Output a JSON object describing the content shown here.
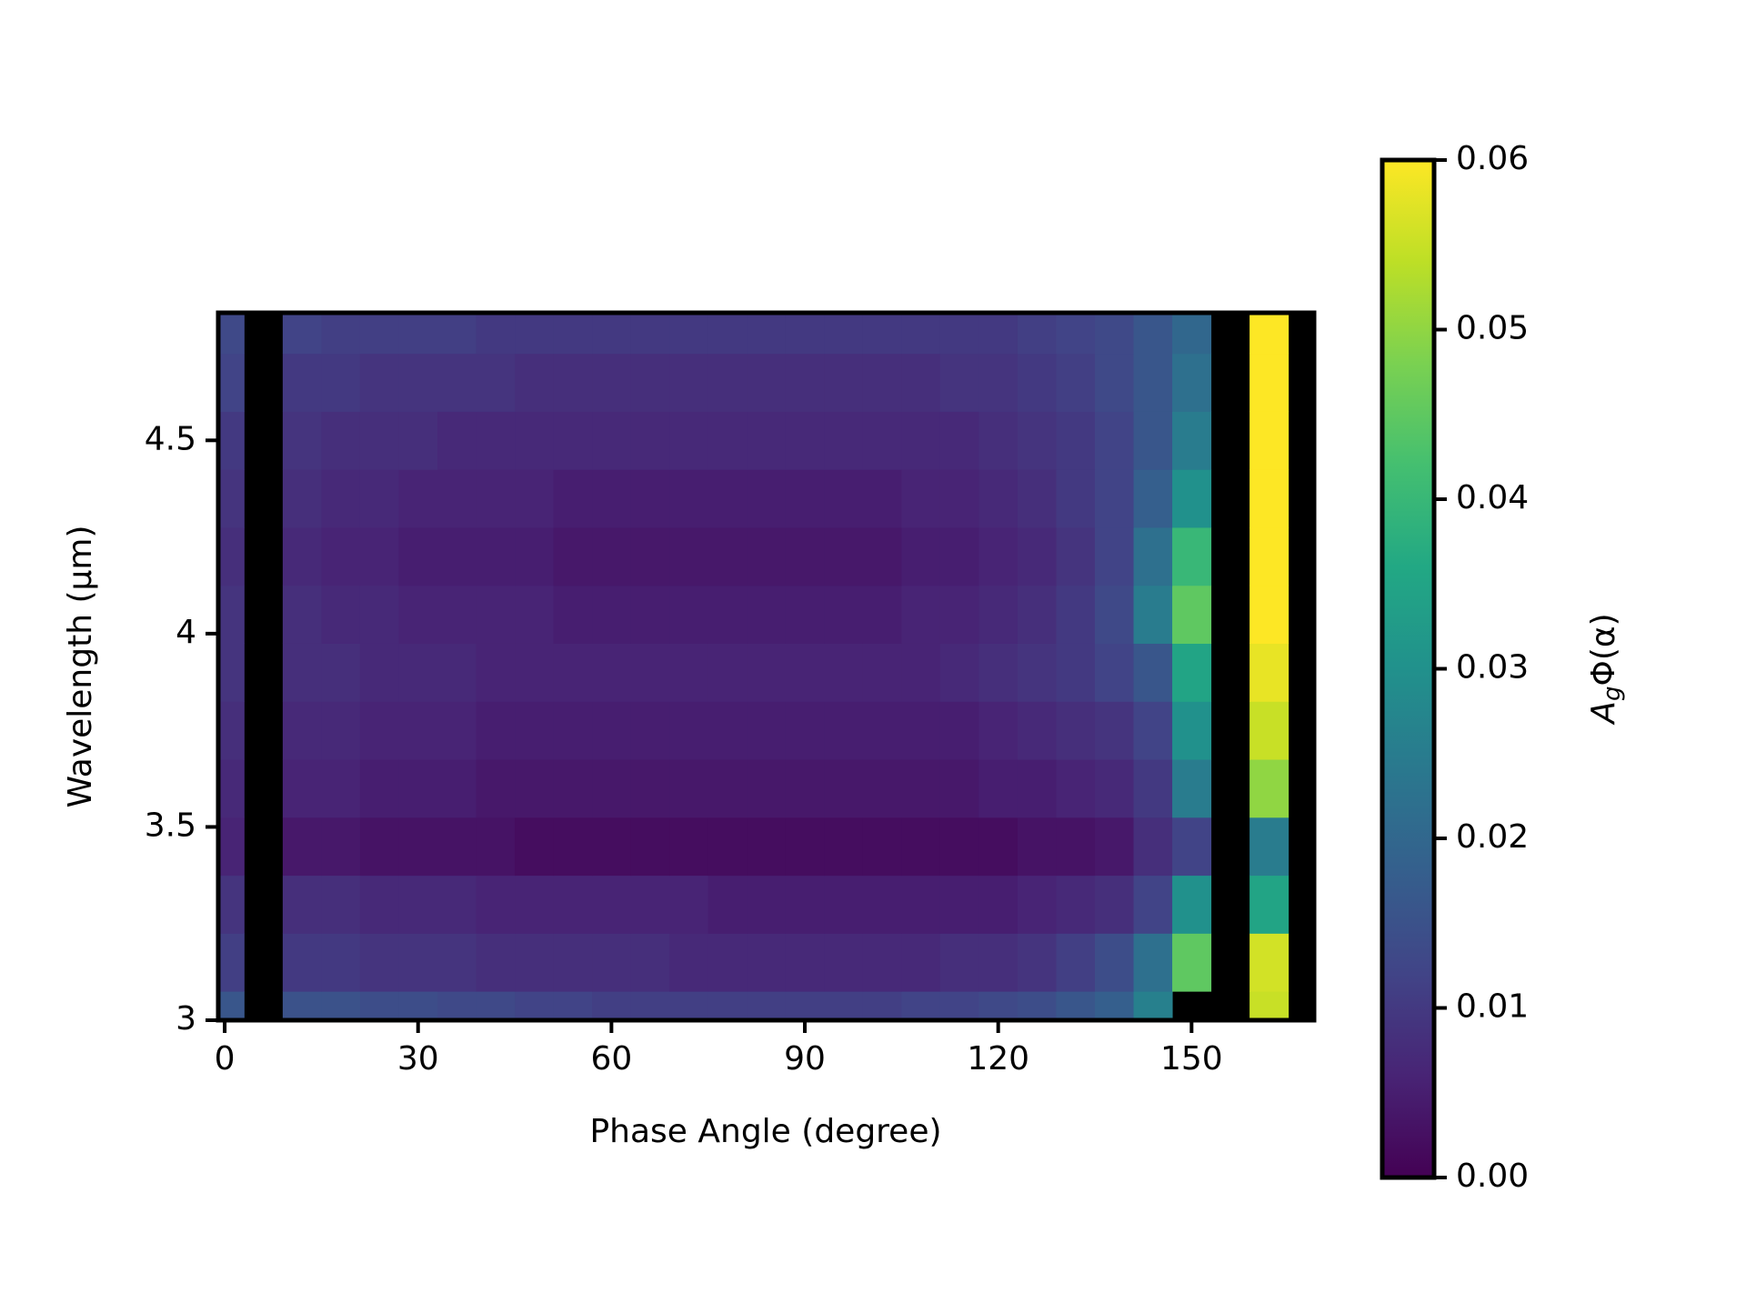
{
  "chart_data": {
    "type": "heatmap",
    "xlabel": "Phase Angle (degree)",
    "ylabel": "Wavelength (μm)",
    "colormap": "viridis",
    "x": [
      0,
      6,
      12,
      18,
      24,
      30,
      36,
      42,
      48,
      54,
      60,
      66,
      72,
      78,
      84,
      90,
      96,
      102,
      108,
      114,
      120,
      126,
      132,
      138,
      144,
      150,
      156,
      162,
      168
    ],
    "y": [
      3.0,
      3.15,
      3.3,
      3.45,
      3.6,
      3.75,
      3.9,
      4.05,
      4.2,
      4.35,
      4.5,
      4.65,
      4.8
    ],
    "z": [
      [
        0.016,
        null,
        0.015,
        0.015,
        0.014,
        0.014,
        0.013,
        0.013,
        0.012,
        0.012,
        0.011,
        0.011,
        0.011,
        0.011,
        0.011,
        0.011,
        0.011,
        0.011,
        0.012,
        0.012,
        0.013,
        0.014,
        0.016,
        0.018,
        0.026,
        null,
        null,
        0.055,
        null
      ],
      [
        0.011,
        null,
        0.01,
        0.01,
        0.009,
        0.009,
        0.009,
        0.008,
        0.008,
        0.008,
        0.008,
        0.008,
        0.007,
        0.007,
        0.007,
        0.007,
        0.007,
        0.007,
        0.007,
        0.008,
        0.008,
        0.009,
        0.011,
        0.014,
        0.022,
        0.045,
        null,
        0.056,
        null
      ],
      [
        0.009,
        null,
        0.008,
        0.008,
        0.007,
        0.007,
        0.007,
        0.006,
        0.006,
        0.006,
        0.006,
        0.006,
        0.006,
        0.005,
        0.005,
        0.005,
        0.005,
        0.005,
        0.005,
        0.005,
        0.005,
        0.006,
        0.007,
        0.008,
        0.012,
        0.03,
        null,
        0.035,
        null
      ],
      [
        0.006,
        null,
        0.004,
        0.004,
        0.003,
        0.003,
        0.003,
        0.003,
        0.002,
        0.002,
        0.002,
        0.002,
        0.002,
        0.002,
        0.002,
        0.002,
        0.002,
        0.002,
        0.002,
        0.002,
        0.002,
        0.003,
        0.003,
        0.004,
        0.008,
        0.012,
        null,
        0.025,
        null
      ],
      [
        0.007,
        null,
        0.006,
        0.006,
        0.005,
        0.005,
        0.005,
        0.004,
        0.004,
        0.004,
        0.004,
        0.004,
        0.004,
        0.004,
        0.004,
        0.004,
        0.004,
        0.004,
        0.004,
        0.004,
        0.005,
        0.005,
        0.006,
        0.007,
        0.01,
        0.025,
        null,
        0.05,
        null
      ],
      [
        0.008,
        null,
        0.007,
        0.007,
        0.006,
        0.006,
        0.006,
        0.005,
        0.005,
        0.005,
        0.005,
        0.005,
        0.005,
        0.005,
        0.005,
        0.005,
        0.005,
        0.005,
        0.005,
        0.005,
        0.006,
        0.007,
        0.008,
        0.009,
        0.012,
        0.03,
        null,
        0.055,
        null
      ],
      [
        0.009,
        null,
        0.008,
        0.008,
        0.007,
        0.007,
        0.007,
        0.006,
        0.006,
        0.006,
        0.006,
        0.006,
        0.006,
        0.006,
        0.006,
        0.006,
        0.006,
        0.006,
        0.006,
        0.007,
        0.008,
        0.009,
        0.01,
        0.012,
        0.016,
        0.035,
        null,
        0.058,
        null
      ],
      [
        0.009,
        null,
        0.008,
        0.007,
        0.007,
        0.006,
        0.006,
        0.006,
        0.006,
        0.005,
        0.005,
        0.005,
        0.005,
        0.005,
        0.005,
        0.005,
        0.005,
        0.005,
        0.006,
        0.006,
        0.007,
        0.008,
        0.01,
        0.013,
        0.025,
        0.045,
        null,
        0.06,
        null
      ],
      [
        0.008,
        null,
        0.007,
        0.006,
        0.006,
        0.005,
        0.005,
        0.005,
        0.005,
        0.004,
        0.004,
        0.004,
        0.004,
        0.004,
        0.004,
        0.004,
        0.004,
        0.004,
        0.005,
        0.005,
        0.006,
        0.007,
        0.009,
        0.012,
        0.022,
        0.04,
        null,
        0.06,
        null
      ],
      [
        0.009,
        null,
        0.008,
        0.007,
        0.007,
        0.006,
        0.006,
        0.006,
        0.006,
        0.005,
        0.005,
        0.005,
        0.005,
        0.005,
        0.005,
        0.005,
        0.005,
        0.005,
        0.006,
        0.006,
        0.007,
        0.008,
        0.01,
        0.012,
        0.018,
        0.03,
        null,
        0.06,
        null
      ],
      [
        0.01,
        null,
        0.009,
        0.008,
        0.008,
        0.008,
        0.007,
        0.007,
        0.007,
        0.007,
        0.007,
        0.007,
        0.007,
        0.007,
        0.007,
        0.007,
        0.007,
        0.007,
        0.007,
        0.007,
        0.008,
        0.009,
        0.01,
        0.012,
        0.016,
        0.025,
        null,
        0.06,
        null
      ],
      [
        0.012,
        null,
        0.01,
        0.01,
        0.009,
        0.009,
        0.009,
        0.009,
        0.008,
        0.008,
        0.008,
        0.008,
        0.008,
        0.008,
        0.008,
        0.008,
        0.008,
        0.008,
        0.008,
        0.009,
        0.009,
        0.01,
        0.011,
        0.013,
        0.016,
        0.022,
        null,
        0.06,
        null
      ],
      [
        0.013,
        null,
        0.012,
        0.011,
        0.011,
        0.011,
        0.011,
        0.01,
        0.01,
        0.01,
        0.01,
        0.01,
        0.01,
        0.01,
        0.01,
        0.01,
        0.01,
        0.01,
        0.01,
        0.01,
        0.01,
        0.011,
        0.012,
        0.013,
        0.016,
        0.02,
        null,
        0.06,
        null
      ]
    ],
    "xlim": [
      -1,
      169
    ],
    "ylim": [
      3,
      4.83
    ],
    "xticks": [
      0,
      30,
      60,
      90,
      120,
      150
    ],
    "yticks": [
      3,
      3.5,
      4,
      4.5
    ],
    "colorbar": {
      "label": [
        "A",
        "g",
        "Φ(α)"
      ],
      "lim": [
        0,
        0.06
      ],
      "ticks": [
        {
          "value": 0,
          "label": "0.00"
        },
        0.01,
        0.02,
        0.03,
        0.04,
        0.05,
        0.06
      ]
    }
  }
}
